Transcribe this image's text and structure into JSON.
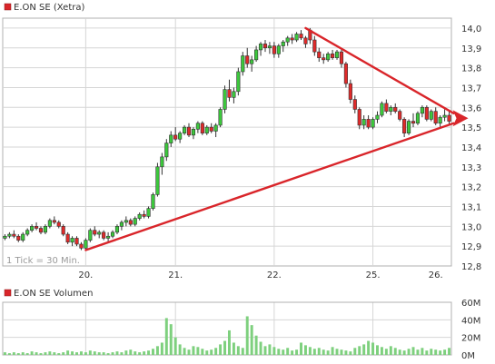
{
  "colors": {
    "up": "#3cc83c",
    "down": "#e02a2a",
    "outline": "#333333",
    "grid": "#d6d6d6",
    "trend": "#d9252a",
    "legend_marker": "#d9252a",
    "volume": "#7ed07e"
  },
  "chart_data": [
    {
      "type": "candlestick",
      "legend": "E.ON SE (Xetra)",
      "note": "1 Tick = 30 Min.",
      "ylim": [
        12.8,
        14.05
      ],
      "y_ticks": [
        "14,0",
        "13,9",
        "13,8",
        "13,7",
        "13,6",
        "13,5",
        "13,4",
        "13,3",
        "13,2",
        "13,1",
        "13,0",
        "12,9",
        "12,8"
      ],
      "x_labels": [
        {
          "label": "20.",
          "day": 0
        },
        {
          "label": "21.",
          "day": 1
        },
        {
          "label": "22.",
          "day": 2
        },
        {
          "label": "25.",
          "day": 3
        },
        {
          "label": "26.",
          "day": 4
        }
      ],
      "candles": [
        {
          "o": 12.94,
          "h": 12.96,
          "l": 12.93,
          "c": 12.95
        },
        {
          "o": 12.95,
          "h": 12.97,
          "l": 12.94,
          "c": 12.96
        },
        {
          "o": 12.96,
          "h": 12.98,
          "l": 12.94,
          "c": 12.95
        },
        {
          "o": 12.95,
          "h": 12.96,
          "l": 12.92,
          "c": 12.93
        },
        {
          "o": 12.93,
          "h": 12.97,
          "l": 12.92,
          "c": 12.96
        },
        {
          "o": 12.96,
          "h": 12.99,
          "l": 12.95,
          "c": 12.98
        },
        {
          "o": 12.98,
          "h": 13.01,
          "l": 12.97,
          "c": 13.0
        },
        {
          "o": 13.0,
          "h": 13.02,
          "l": 12.98,
          "c": 12.99
        },
        {
          "o": 12.99,
          "h": 13.0,
          "l": 12.96,
          "c": 12.97
        },
        {
          "o": 12.97,
          "h": 13.01,
          "l": 12.96,
          "c": 13.0
        },
        {
          "o": 13.0,
          "h": 13.04,
          "l": 12.99,
          "c": 13.03
        },
        {
          "o": 13.03,
          "h": 13.05,
          "l": 13.01,
          "c": 13.02
        },
        {
          "o": 13.02,
          "h": 13.03,
          "l": 12.99,
          "c": 13.0
        },
        {
          "o": 13.0,
          "h": 13.01,
          "l": 12.95,
          "c": 12.96
        },
        {
          "o": 12.96,
          "h": 12.97,
          "l": 12.91,
          "c": 12.92
        },
        {
          "o": 12.92,
          "h": 12.95,
          "l": 12.9,
          "c": 12.94
        },
        {
          "o": 12.94,
          "h": 12.95,
          "l": 12.9,
          "c": 12.91
        },
        {
          "o": 12.91,
          "h": 12.92,
          "l": 12.88,
          "c": 12.89
        },
        {
          "o": 12.89,
          "h": 12.94,
          "l": 12.88,
          "c": 12.93
        },
        {
          "o": 12.93,
          "h": 12.99,
          "l": 12.92,
          "c": 12.98
        },
        {
          "o": 12.98,
          "h": 13.0,
          "l": 12.95,
          "c": 12.96
        },
        {
          "o": 12.96,
          "h": 12.98,
          "l": 12.94,
          "c": 12.97
        },
        {
          "o": 12.97,
          "h": 12.98,
          "l": 12.93,
          "c": 12.94
        },
        {
          "o": 12.94,
          "h": 12.97,
          "l": 12.92,
          "c": 12.95
        },
        {
          "o": 12.95,
          "h": 12.98,
          "l": 12.94,
          "c": 12.97
        },
        {
          "o": 12.97,
          "h": 13.01,
          "l": 12.96,
          "c": 13.0
        },
        {
          "o": 13.0,
          "h": 13.03,
          "l": 12.98,
          "c": 13.02
        },
        {
          "o": 13.02,
          "h": 13.05,
          "l": 13.0,
          "c": 13.03
        },
        {
          "o": 13.03,
          "h": 13.04,
          "l": 13.0,
          "c": 13.01
        },
        {
          "o": 13.01,
          "h": 13.05,
          "l": 13.0,
          "c": 13.04
        },
        {
          "o": 13.04,
          "h": 13.07,
          "l": 13.03,
          "c": 13.06
        },
        {
          "o": 13.06,
          "h": 13.08,
          "l": 13.04,
          "c": 13.05
        },
        {
          "o": 13.05,
          "h": 13.1,
          "l": 13.04,
          "c": 13.09
        },
        {
          "o": 13.09,
          "h": 13.17,
          "l": 13.08,
          "c": 13.16
        },
        {
          "o": 13.16,
          "h": 13.32,
          "l": 13.15,
          "c": 13.3
        },
        {
          "o": 13.3,
          "h": 13.37,
          "l": 13.26,
          "c": 13.35
        },
        {
          "o": 13.35,
          "h": 13.44,
          "l": 13.33,
          "c": 13.42
        },
        {
          "o": 13.42,
          "h": 13.48,
          "l": 13.4,
          "c": 13.46
        },
        {
          "o": 13.46,
          "h": 13.5,
          "l": 13.43,
          "c": 13.44
        },
        {
          "o": 13.44,
          "h": 13.48,
          "l": 13.42,
          "c": 13.47
        },
        {
          "o": 13.47,
          "h": 13.51,
          "l": 13.46,
          "c": 13.5
        },
        {
          "o": 13.5,
          "h": 13.52,
          "l": 13.45,
          "c": 13.46
        },
        {
          "o": 13.46,
          "h": 13.5,
          "l": 13.44,
          "c": 13.49
        },
        {
          "o": 13.49,
          "h": 13.53,
          "l": 13.47,
          "c": 13.52
        },
        {
          "o": 13.52,
          "h": 13.53,
          "l": 13.46,
          "c": 13.47
        },
        {
          "o": 13.47,
          "h": 13.51,
          "l": 13.46,
          "c": 13.5
        },
        {
          "o": 13.5,
          "h": 13.52,
          "l": 13.47,
          "c": 13.48
        },
        {
          "o": 13.48,
          "h": 13.52,
          "l": 13.45,
          "c": 13.51
        },
        {
          "o": 13.51,
          "h": 13.6,
          "l": 13.5,
          "c": 13.59
        },
        {
          "o": 13.59,
          "h": 13.71,
          "l": 13.57,
          "c": 13.69
        },
        {
          "o": 13.69,
          "h": 13.74,
          "l": 13.63,
          "c": 13.65
        },
        {
          "o": 13.65,
          "h": 13.7,
          "l": 13.62,
          "c": 13.68
        },
        {
          "o": 13.68,
          "h": 13.8,
          "l": 13.66,
          "c": 13.78
        },
        {
          "o": 13.78,
          "h": 13.88,
          "l": 13.76,
          "c": 13.86
        },
        {
          "o": 13.86,
          "h": 13.9,
          "l": 13.8,
          "c": 13.82
        },
        {
          "o": 13.82,
          "h": 13.86,
          "l": 13.78,
          "c": 13.84
        },
        {
          "o": 13.84,
          "h": 13.91,
          "l": 13.83,
          "c": 13.89
        },
        {
          "o": 13.89,
          "h": 13.93,
          "l": 13.86,
          "c": 13.92
        },
        {
          "o": 13.92,
          "h": 13.94,
          "l": 13.88,
          "c": 13.9
        },
        {
          "o": 13.9,
          "h": 13.93,
          "l": 13.87,
          "c": 13.91
        },
        {
          "o": 13.91,
          "h": 13.93,
          "l": 13.85,
          "c": 13.87
        },
        {
          "o": 13.87,
          "h": 13.92,
          "l": 13.85,
          "c": 13.91
        },
        {
          "o": 13.91,
          "h": 13.94,
          "l": 13.88,
          "c": 13.93
        },
        {
          "o": 13.93,
          "h": 13.96,
          "l": 13.91,
          "c": 13.95
        },
        {
          "o": 13.95,
          "h": 13.97,
          "l": 13.92,
          "c": 13.94
        },
        {
          "o": 13.94,
          "h": 13.98,
          "l": 13.93,
          "c": 13.97
        },
        {
          "o": 13.97,
          "h": 13.99,
          "l": 13.94,
          "c": 13.95
        },
        {
          "o": 13.95,
          "h": 13.96,
          "l": 13.9,
          "c": 13.92
        },
        {
          "o": 13.99,
          "h": 14.0,
          "l": 13.92,
          "c": 13.94
        },
        {
          "o": 13.94,
          "h": 13.96,
          "l": 13.86,
          "c": 13.88
        },
        {
          "o": 13.88,
          "h": 13.9,
          "l": 13.83,
          "c": 13.85
        },
        {
          "o": 13.85,
          "h": 13.87,
          "l": 13.82,
          "c": 13.84
        },
        {
          "o": 13.84,
          "h": 13.88,
          "l": 13.83,
          "c": 13.87
        },
        {
          "o": 13.87,
          "h": 13.89,
          "l": 13.84,
          "c": 13.85
        },
        {
          "o": 13.85,
          "h": 13.89,
          "l": 13.84,
          "c": 13.88
        },
        {
          "o": 13.88,
          "h": 13.9,
          "l": 13.8,
          "c": 13.82
        },
        {
          "o": 13.82,
          "h": 13.83,
          "l": 13.7,
          "c": 13.72
        },
        {
          "o": 13.72,
          "h": 13.74,
          "l": 13.62,
          "c": 13.64
        },
        {
          "o": 13.64,
          "h": 13.66,
          "l": 13.57,
          "c": 13.59
        },
        {
          "o": 13.59,
          "h": 13.6,
          "l": 13.49,
          "c": 13.51
        },
        {
          "o": 13.51,
          "h": 13.56,
          "l": 13.49,
          "c": 13.54
        },
        {
          "o": 13.54,
          "h": 13.56,
          "l": 13.49,
          "c": 13.5
        },
        {
          "o": 13.5,
          "h": 13.55,
          "l": 13.49,
          "c": 13.54
        },
        {
          "o": 13.54,
          "h": 13.58,
          "l": 13.52,
          "c": 13.56
        },
        {
          "o": 13.56,
          "h": 13.63,
          "l": 13.55,
          "c": 13.62
        },
        {
          "o": 13.62,
          "h": 13.64,
          "l": 13.57,
          "c": 13.58
        },
        {
          "o": 13.58,
          "h": 13.61,
          "l": 13.56,
          "c": 13.6
        },
        {
          "o": 13.6,
          "h": 13.62,
          "l": 13.57,
          "c": 13.58
        },
        {
          "o": 13.58,
          "h": 13.59,
          "l": 13.53,
          "c": 13.54
        },
        {
          "o": 13.54,
          "h": 13.55,
          "l": 13.45,
          "c": 13.47
        },
        {
          "o": 13.47,
          "h": 13.54,
          "l": 13.46,
          "c": 13.53
        },
        {
          "o": 13.53,
          "h": 13.57,
          "l": 13.5,
          "c": 13.52
        },
        {
          "o": 13.52,
          "h": 13.58,
          "l": 13.51,
          "c": 13.57
        },
        {
          "o": 13.57,
          "h": 13.61,
          "l": 13.55,
          "c": 13.6
        },
        {
          "o": 13.6,
          "h": 13.61,
          "l": 13.53,
          "c": 13.54
        },
        {
          "o": 13.54,
          "h": 13.59,
          "l": 13.53,
          "c": 13.58
        },
        {
          "o": 13.58,
          "h": 13.6,
          "l": 13.51,
          "c": 13.52
        },
        {
          "o": 13.52,
          "h": 13.56,
          "l": 13.5,
          "c": 13.55
        },
        {
          "o": 13.55,
          "h": 13.59,
          "l": 13.53,
          "c": 13.56
        },
        {
          "o": 13.56,
          "h": 13.58,
          "l": 13.51,
          "c": 13.53
        }
      ],
      "trendlines": [
        {
          "from": {
            "i": 18,
            "v": 12.88
          },
          "to": {
            "i": 100,
            "v": 13.52
          }
        },
        {
          "from": {
            "i": 67,
            "v": 14.0
          },
          "to": {
            "i": 100,
            "v": 13.57
          }
        }
      ]
    },
    {
      "type": "bar",
      "legend": "E.ON SE Volumen",
      "ylim": [
        0,
        60
      ],
      "y_ticks": [
        "60M",
        "40M",
        "20M",
        "0M"
      ],
      "values": [
        3,
        2,
        3,
        2,
        3,
        2,
        4,
        3,
        2,
        3,
        4,
        3,
        2,
        3,
        5,
        4,
        3,
        4,
        3,
        5,
        4,
        3,
        3,
        2,
        3,
        4,
        3,
        5,
        6,
        4,
        3,
        4,
        5,
        7,
        10,
        14,
        42,
        35,
        20,
        12,
        8,
        6,
        10,
        9,
        7,
        5,
        6,
        8,
        12,
        16,
        28,
        14,
        10,
        8,
        44,
        34,
        22,
        15,
        10,
        12,
        9,
        7,
        6,
        8,
        5,
        6,
        14,
        11,
        9,
        7,
        8,
        6,
        5,
        9,
        7,
        6,
        5,
        4,
        8,
        10,
        12,
        16,
        14,
        11,
        9,
        7,
        10,
        8,
        6,
        5,
        7,
        9,
        6,
        8,
        5,
        7,
        6,
        5,
        6,
        8
      ]
    }
  ]
}
